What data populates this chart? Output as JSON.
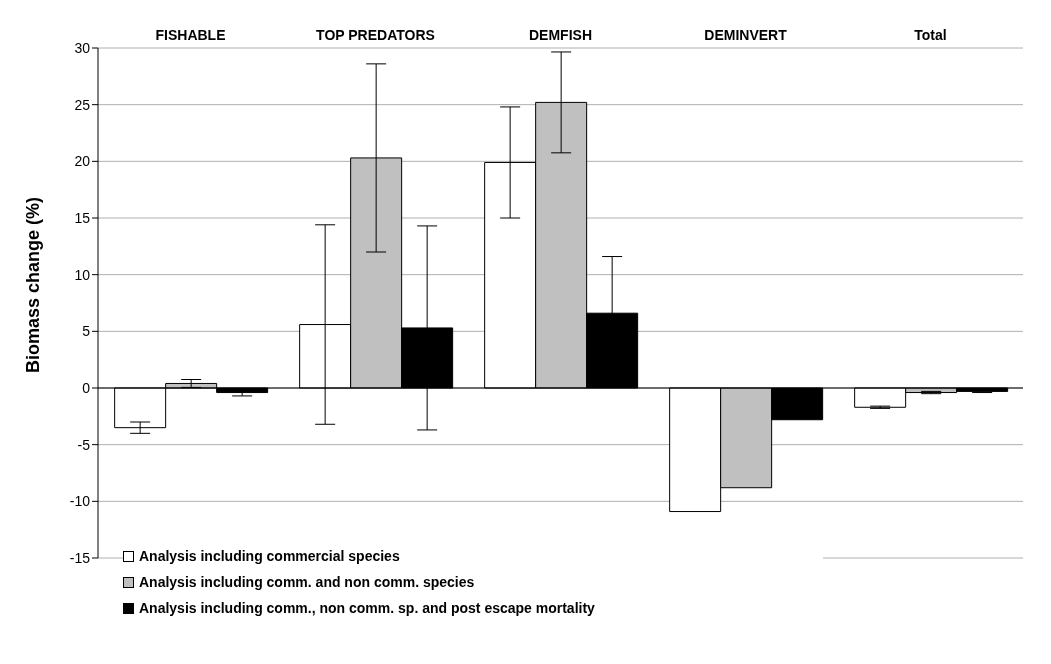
{
  "chart_data": {
    "type": "bar",
    "ylabel": "Biomass change (%)",
    "categories": [
      "FISHABLE",
      "TOP PREDATORS",
      "DEMFISH",
      "DEMINVERT",
      "Total"
    ],
    "series": [
      {
        "name": "Analysis including commercial species",
        "color": "#ffffff",
        "values": [
          -3.5,
          5.6,
          19.9,
          -10.9,
          -1.7
        ],
        "errors": [
          0.5,
          8.8,
          4.9,
          null,
          0.1
        ]
      },
      {
        "name": "Analysis including comm. and non comm. species",
        "color": "#c0c0c0",
        "values": [
          0.4,
          20.3,
          25.2,
          -8.8,
          -0.4
        ],
        "errors": [
          0.35,
          8.3,
          4.45,
          null,
          0.1
        ]
      },
      {
        "name": "Analysis including comm., non comm. sp. and post escape mortality",
        "color": "#000000",
        "values": [
          -0.4,
          5.3,
          6.6,
          -2.8,
          -0.3
        ],
        "errors": [
          0.3,
          9,
          5,
          null,
          0.1
        ]
      }
    ],
    "ylim": [
      -15,
      30
    ],
    "yticks": [
      -15,
      -10,
      -5,
      0,
      5,
      10,
      15,
      20,
      25,
      30
    ],
    "grid": "y",
    "legend": "bottom left"
  }
}
